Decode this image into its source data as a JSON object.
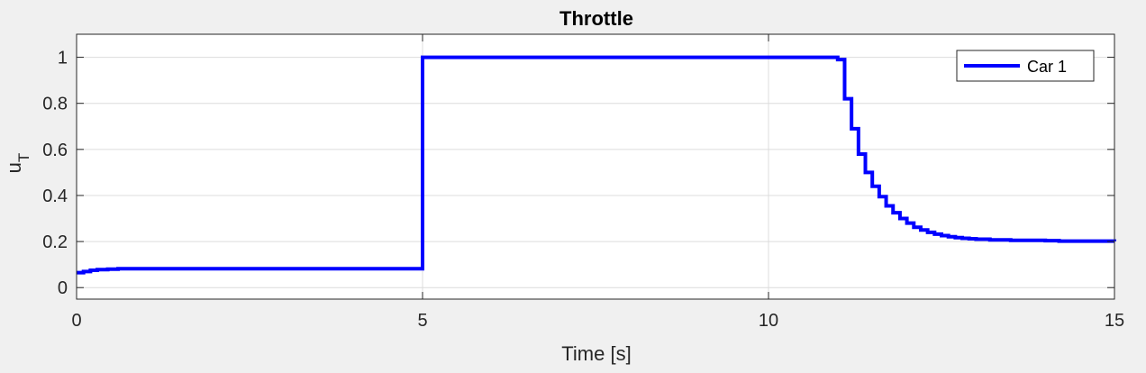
{
  "chart_data": {
    "type": "line",
    "title": "Throttle",
    "xlabel": "Time [s]",
    "ylabel": "u",
    "ylabel_subscript": "T",
    "xlim": [
      0,
      15
    ],
    "ylim": [
      -0.05,
      1.1
    ],
    "xticks": [
      0,
      5,
      10,
      15
    ],
    "xtick_labels": [
      "0",
      "5",
      "10",
      "15"
    ],
    "yticks": [
      0,
      0.2,
      0.4,
      0.6,
      0.8,
      1
    ],
    "ytick_labels": [
      "0",
      "0.2",
      "0.4",
      "0.6",
      "0.8",
      "1"
    ],
    "grid": true,
    "legend_position": "top-right",
    "series": [
      {
        "name": "Car 1",
        "color": "#0000ff",
        "step": true,
        "x": [
          0,
          0.1,
          0.2,
          0.3,
          0.45,
          0.6,
          5.0,
          11.0,
          11.1,
          11.2,
          11.3,
          11.4,
          11.5,
          11.6,
          11.7,
          11.8,
          11.9,
          12.0,
          12.1,
          12.2,
          12.3,
          12.4,
          12.5,
          12.6,
          12.7,
          12.8,
          12.9,
          13.0,
          13.2,
          13.5,
          14.0,
          14.2,
          15.0
        ],
        "y": [
          0.065,
          0.07,
          0.075,
          0.078,
          0.08,
          0.082,
          1.0,
          0.99,
          0.82,
          0.69,
          0.58,
          0.5,
          0.44,
          0.395,
          0.355,
          0.325,
          0.3,
          0.28,
          0.262,
          0.25,
          0.24,
          0.232,
          0.226,
          0.221,
          0.217,
          0.214,
          0.212,
          0.21,
          0.207,
          0.205,
          0.204,
          0.202,
          0.201
        ]
      }
    ]
  }
}
